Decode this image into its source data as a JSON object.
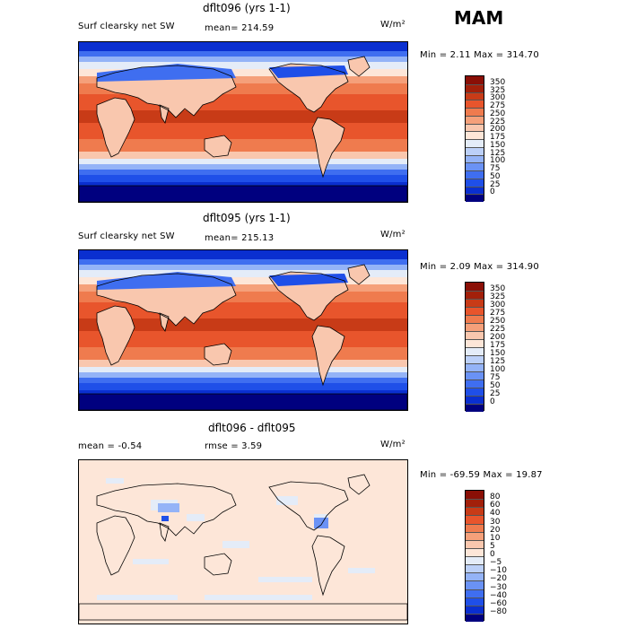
{
  "season": "MAM",
  "units": "W/m²",
  "panels": [
    {
      "title": "dflt096 (yrs 1-1)",
      "left_label": "Surf clearsky net SW",
      "stat_text": "mean= 214.59",
      "min_max_text": "Min =    2.11 Max = 314.70",
      "kind": "field"
    },
    {
      "title": "dflt095 (yrs 1-1)",
      "left_label": "Surf clearsky net SW",
      "stat_text": "mean= 215.13",
      "min_max_text": "Min =    2.09 Max = 314.90",
      "kind": "field"
    },
    {
      "title": "dflt096 - dflt095",
      "left_label": "mean =   -0.54",
      "stat_text": "rmse =    3.59",
      "min_max_text": "Min = -69.59 Max =  19.87",
      "kind": "diff"
    }
  ],
  "chart_data": [
    {
      "type": "heatmap",
      "title": "dflt096 (yrs 1-1)",
      "variable": "Surf clearsky net SW",
      "units": "W/m²",
      "mean": 214.59,
      "min": 2.11,
      "max": 314.7,
      "levels": [
        0,
        25,
        50,
        75,
        100,
        125,
        150,
        175,
        200,
        225,
        250,
        275,
        300,
        325,
        350
      ],
      "colors": [
        "#00007f",
        "#0a2fd0",
        "#1f4fe8",
        "#3f6ef0",
        "#6a92f5",
        "#94b3f7",
        "#bcd0f8",
        "#e4ecf8",
        "#fde6d8",
        "#f9c7ae",
        "#f5a07a",
        "#ef7b4e",
        "#e8552c",
        "#c83b17",
        "#a2200a",
        "#8a0f06"
      ],
      "colorbar_labels": [
        "350",
        "325",
        "300",
        "275",
        "250",
        "225",
        "200",
        "175",
        "150",
        "125",
        "100",
        "75",
        "50",
        "25",
        "0"
      ]
    },
    {
      "type": "heatmap",
      "title": "dflt095 (yrs 1-1)",
      "variable": "Surf clearsky net SW",
      "units": "W/m²",
      "mean": 215.13,
      "min": 2.09,
      "max": 314.9,
      "levels": [
        0,
        25,
        50,
        75,
        100,
        125,
        150,
        175,
        200,
        225,
        250,
        275,
        300,
        325,
        350
      ],
      "colors": [
        "#00007f",
        "#0a2fd0",
        "#1f4fe8",
        "#3f6ef0",
        "#6a92f5",
        "#94b3f7",
        "#bcd0f8",
        "#e4ecf8",
        "#fde6d8",
        "#f9c7ae",
        "#f5a07a",
        "#ef7b4e",
        "#e8552c",
        "#c83b17",
        "#a2200a",
        "#8a0f06"
      ],
      "colorbar_labels": [
        "350",
        "325",
        "300",
        "275",
        "250",
        "225",
        "200",
        "175",
        "150",
        "125",
        "100",
        "75",
        "50",
        "25",
        "0"
      ]
    },
    {
      "type": "heatmap",
      "title": "dflt096 - dflt095",
      "units": "W/m²",
      "mean": -0.54,
      "rmse": 3.59,
      "min": -69.59,
      "max": 19.87,
      "levels": [
        -80,
        -60,
        -40,
        -30,
        -20,
        -10,
        -5,
        0,
        5,
        10,
        20,
        30,
        40,
        60,
        80
      ],
      "colors": [
        "#00007f",
        "#0a2fd0",
        "#1f4fe8",
        "#3f6ef0",
        "#6a92f5",
        "#94b3f7",
        "#bcd0f8",
        "#e4ecf8",
        "#fde6d8",
        "#f9c7ae",
        "#f5a07a",
        "#ef7b4e",
        "#e8552c",
        "#c83b17",
        "#a2200a",
        "#8a0f06"
      ],
      "colorbar_labels": [
        "80",
        "60",
        "40",
        "30",
        "20",
        "10",
        "5",
        "0",
        "−5",
        "−10",
        "−20",
        "−30",
        "−40",
        "−60",
        "−80"
      ]
    }
  ]
}
